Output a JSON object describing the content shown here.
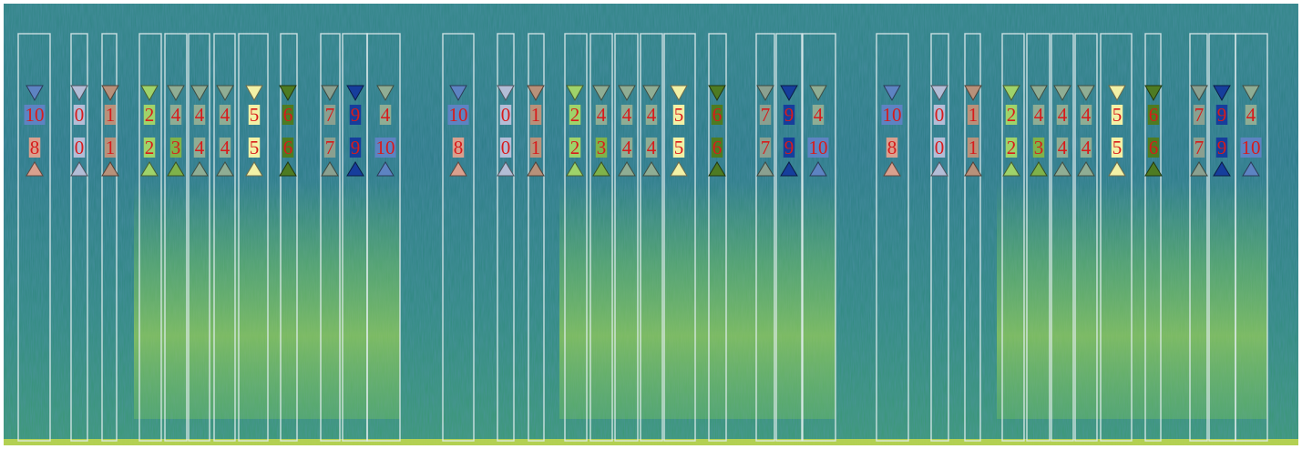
{
  "palette": {
    "0": "#b3bdd6",
    "1": "#b8917a",
    "2": "#9fd36a",
    "3": "#7fb24a",
    "4": "#8fad94",
    "5": "#f2f1a6",
    "6": "#4e7b22",
    "7": "#8aa090",
    "8": "#d9a08e",
    "9": "#163e9c",
    "10": "#5d83c2"
  },
  "label_color": "#d81b1b",
  "groups": [
    {
      "items": [
        {
          "top": "10",
          "bottom": "8"
        },
        {
          "top": "0",
          "bottom": "0"
        },
        {
          "top": "1",
          "bottom": "1"
        },
        {
          "top": "2",
          "bottom": "2"
        },
        {
          "top": "4",
          "bottom": "3"
        },
        {
          "top": "4",
          "bottom": "4"
        },
        {
          "top": "4",
          "bottom": "4"
        },
        {
          "top": "5",
          "bottom": "5"
        },
        {
          "top": "6",
          "bottom": "6"
        },
        {
          "top": "7",
          "bottom": "7"
        },
        {
          "top": "9",
          "bottom": "9"
        },
        {
          "top": "4",
          "bottom": "10"
        }
      ]
    },
    {
      "items": [
        {
          "top": "10",
          "bottom": "8"
        },
        {
          "top": "0",
          "bottom": "0"
        },
        {
          "top": "1",
          "bottom": "1"
        },
        {
          "top": "2",
          "bottom": "2"
        },
        {
          "top": "4",
          "bottom": "3"
        },
        {
          "top": "4",
          "bottom": "4"
        },
        {
          "top": "4",
          "bottom": "4"
        },
        {
          "top": "5",
          "bottom": "5"
        },
        {
          "top": "6",
          "bottom": "6"
        },
        {
          "top": "7",
          "bottom": "7"
        },
        {
          "top": "9",
          "bottom": "9"
        },
        {
          "top": "4",
          "bottom": "10"
        }
      ]
    },
    {
      "items": [
        {
          "top": "10",
          "bottom": "8"
        },
        {
          "top": "0",
          "bottom": "0"
        },
        {
          "top": "1",
          "bottom": "1"
        },
        {
          "top": "2",
          "bottom": "2"
        },
        {
          "top": "4",
          "bottom": "3"
        },
        {
          "top": "4",
          "bottom": "4"
        },
        {
          "top": "4",
          "bottom": "4"
        },
        {
          "top": "5",
          "bottom": "5"
        },
        {
          "top": "6",
          "bottom": "6"
        },
        {
          "top": "7",
          "bottom": "7"
        },
        {
          "top": "9",
          "bottom": "9"
        },
        {
          "top": "4",
          "bottom": "10"
        }
      ]
    }
  ]
}
